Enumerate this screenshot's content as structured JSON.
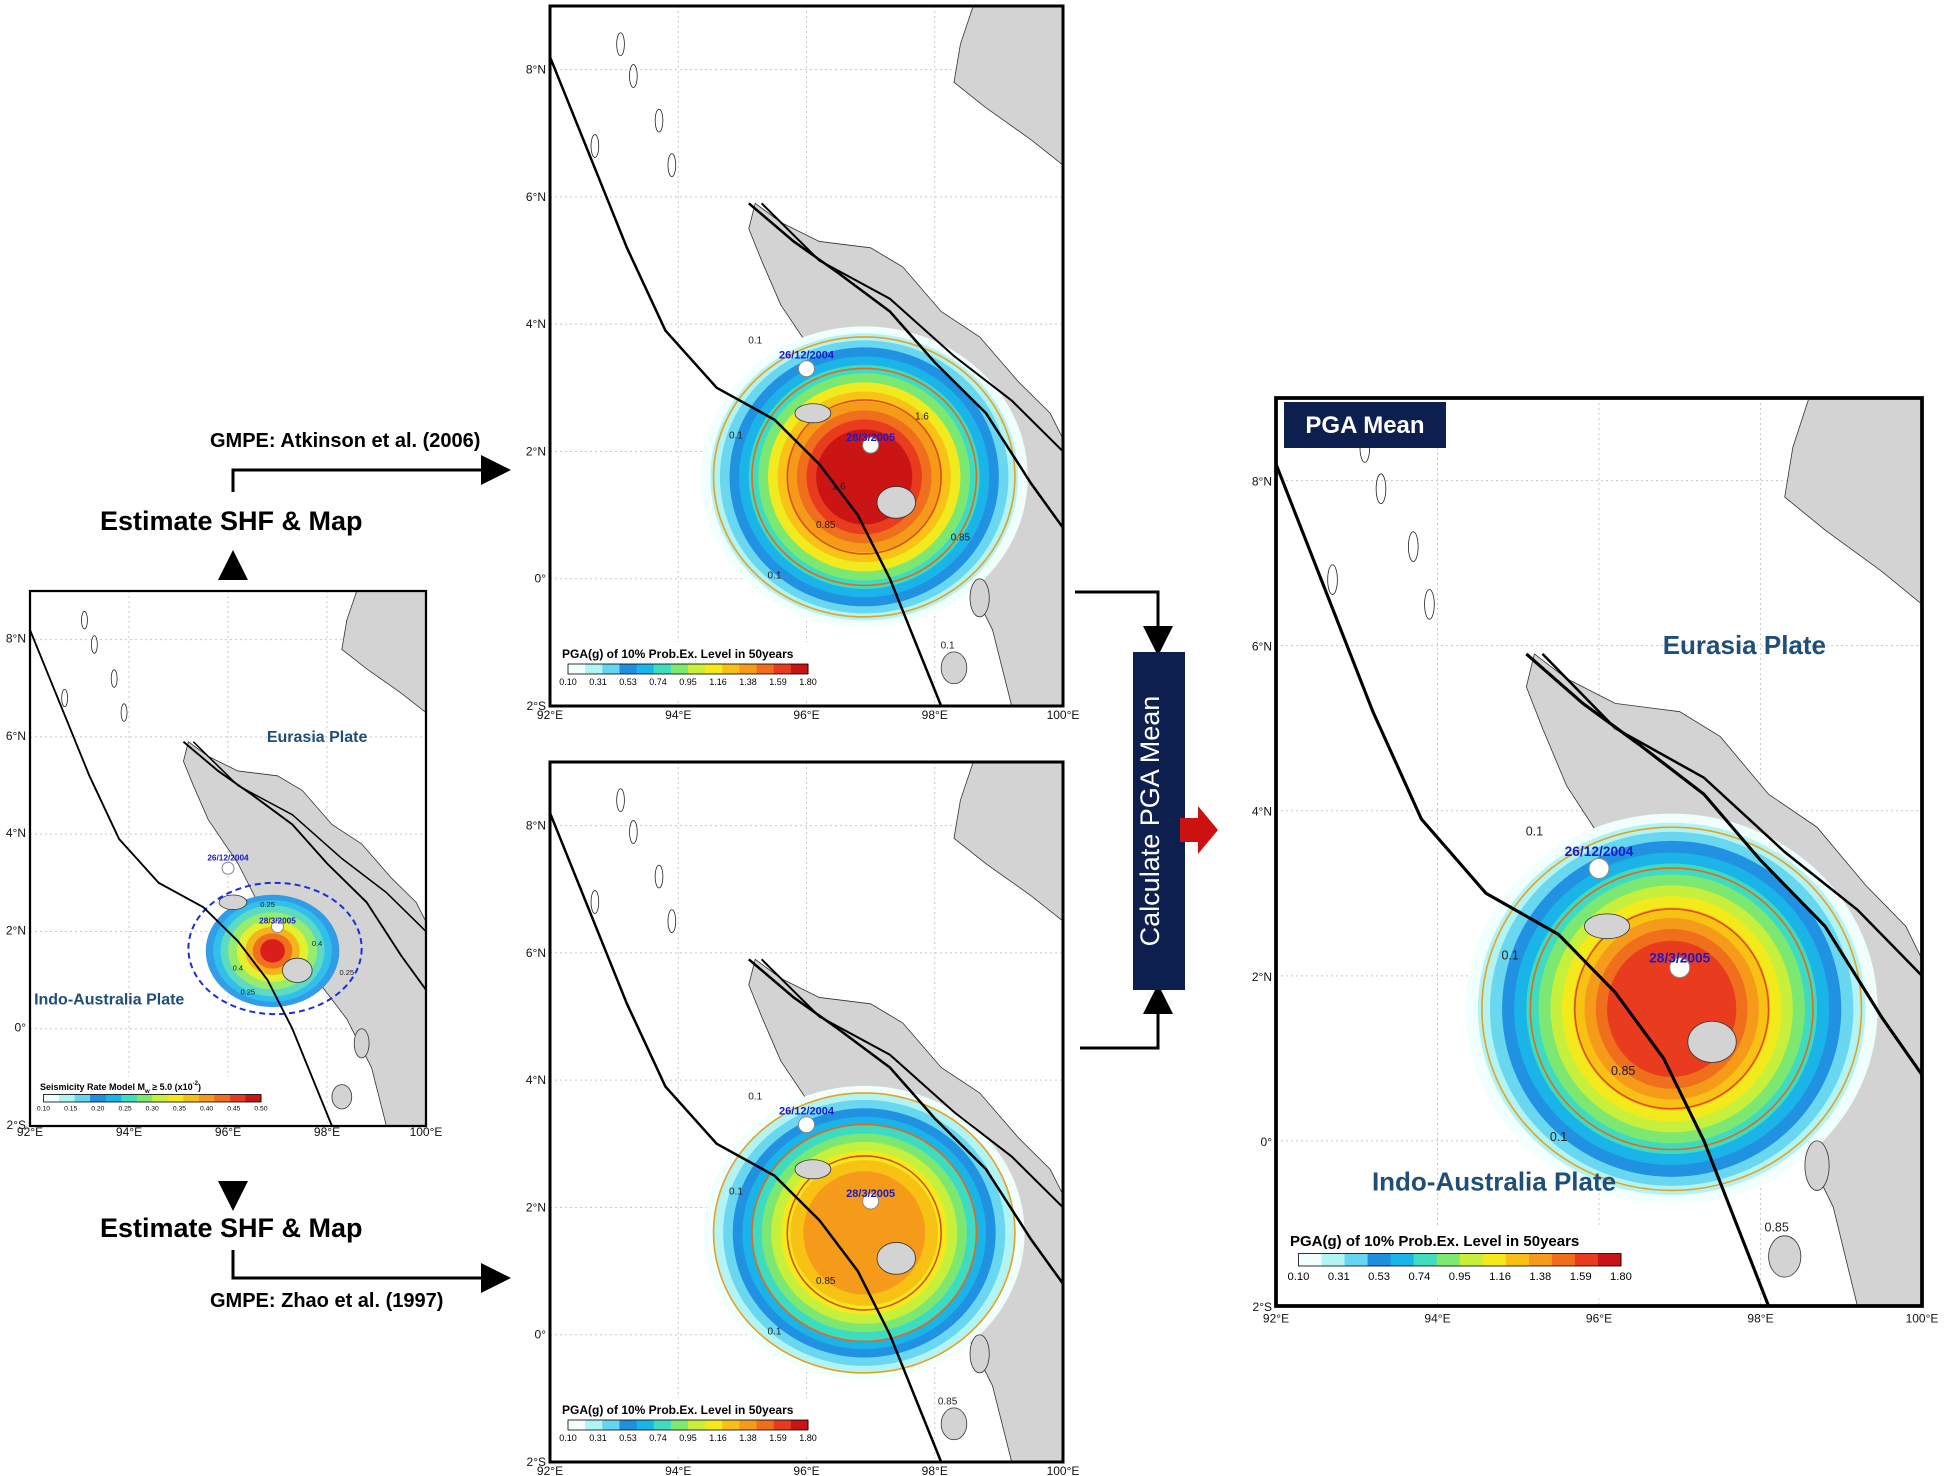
{
  "flow": {
    "step_top": "Estimate SHF & Map",
    "step_bottom": "Estimate SHF & Map",
    "gmpe_top": "GMPE: Atkinson et al. (2006)",
    "gmpe_bottom": "GMPE: Zhao et al. (1997)",
    "calc_box": "Calculate PGA Mean",
    "result_badge": "PGA Mean"
  },
  "colors": {
    "navy": "#0d1f4f",
    "arrow_red": "#cc1111",
    "plate_text": "#1f4e79",
    "date_text": "#1a1acc",
    "land": "#d3d3d3",
    "colormap": [
      "#f2ffff",
      "#b0f4f4",
      "#66d6f0",
      "#1f8fe0",
      "#1ab5e8",
      "#3fdcc0",
      "#7ee870",
      "#c8f03a",
      "#f5e91b",
      "#f8c016",
      "#f59a1a",
      "#f06d1e",
      "#e83a1e",
      "#c81414"
    ]
  },
  "axes": {
    "lon_labels": [
      "92°E",
      "94°E",
      "96°E",
      "98°E",
      "100°E"
    ],
    "lat_labels": [
      "2°S",
      "0°",
      "2°N",
      "4°N",
      "6°N",
      "8°N"
    ],
    "lon_range": [
      92,
      100
    ],
    "lat_range": [
      -2,
      9
    ]
  },
  "maps": {
    "seismicity": {
      "plate_north": "Eurasia Plate",
      "plate_south": "Indo-Australia Plate",
      "date1": "26/12/2004",
      "date2": "28/3/2005",
      "colorbar_title": "Seismicity Rate Model M",
      "colorbar_title_sub": "w",
      "colorbar_title_tail": " ≥ 5.0 (x10",
      "colorbar_title_sup": "-2",
      "colorbar_title_end": ")",
      "colorbar_ticks": [
        "0.10",
        "0.15",
        "0.20",
        "0.25",
        "0.30",
        "0.35",
        "0.40",
        "0.45",
        "0.50"
      ],
      "contour_labels": [
        "0.25",
        "0.4",
        "0.4",
        "0.25",
        "0.25"
      ]
    },
    "atkinson": {
      "date1": "26/12/2004",
      "date2": "28/3/2005",
      "colorbar_title": "PGA(g) of 10% Prob.Ex. Level in 50years",
      "colorbar_ticks": [
        "0.10",
        "0.31",
        "0.53",
        "0.74",
        "0.95",
        "1.16",
        "1.38",
        "1.59",
        "1.80"
      ],
      "contour_labels": [
        "0.1",
        "0.1",
        "0.1",
        "0.1",
        "0.85",
        "0.85",
        "1.6",
        "1.6"
      ]
    },
    "zhao": {
      "date1": "26/12/2004",
      "date2": "28/3/2005",
      "colorbar_title": "PGA(g) of 10% Prob.Ex. Level in 50years",
      "colorbar_ticks": [
        "0.10",
        "0.31",
        "0.53",
        "0.74",
        "0.95",
        "1.16",
        "1.38",
        "1.59",
        "1.80"
      ],
      "contour_labels": [
        "0.1",
        "0.1",
        "0.1",
        "0.85",
        "0.85"
      ]
    },
    "mean": {
      "plate_north": "Eurasia Plate",
      "plate_south": "Indo-Australia Plate",
      "date1": "26/12/2004",
      "date2": "28/3/2005",
      "colorbar_title": "PGA(g) of 10% Prob.Ex. Level in 50years",
      "colorbar_ticks": [
        "0.10",
        "0.31",
        "0.53",
        "0.74",
        "0.95",
        "1.16",
        "1.38",
        "1.59",
        "1.80"
      ],
      "contour_labels": [
        "0.1",
        "0.1",
        "0.1",
        "0.85",
        "0.85"
      ]
    }
  }
}
